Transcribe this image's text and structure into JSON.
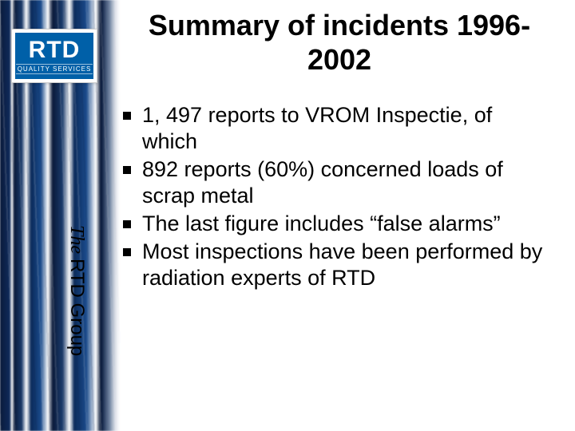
{
  "slide": {
    "background_color": "#ffffff",
    "strip_colors": [
      "#0a1a3a",
      "#1a3a6a",
      "#1a4a8a",
      "#ffffff"
    ],
    "title": "Summary of incidents 1996-2002",
    "title_fontsize": 36,
    "title_color": "#000000",
    "bullets": [
      "1, 497 reports to VROM Inspectie, of which",
      "892 reports  (60%) concerned loads of scrap metal",
      "The last figure includes “false alarms”",
      "Most inspections have been performed by radiation experts of RTD"
    ],
    "bullet_fontsize": 27,
    "bullet_color": "#000000",
    "bullet_marker": "square",
    "bullet_marker_color": "#000000"
  },
  "logo": {
    "primary_text": "RTD",
    "sub_text": "QUALITY SERVICES",
    "bg_color": "#0060a8",
    "text_color": "#ffffff"
  },
  "sidebar_label": {
    "prefix_italic": "The ",
    "rest": "RTD Group",
    "fontsize": 24,
    "color": "#000000"
  }
}
